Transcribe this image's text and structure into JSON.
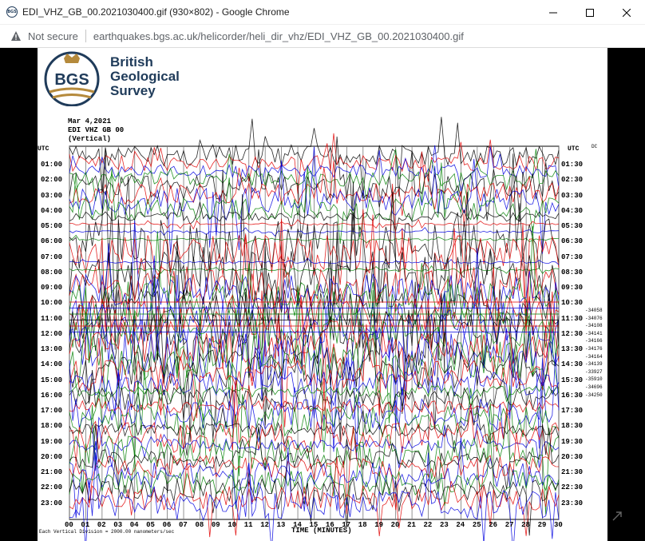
{
  "window": {
    "title": "EDI_VHZ_GB_00.2021030400.gif (930×802) - Google Chrome",
    "favicon_text": "BGS"
  },
  "address": {
    "security": "Not secure",
    "url": "earthquakes.bgs.ac.uk/helicorder/heli_dir_vhz/EDI_VHZ_GB_00.2021030400.gif"
  },
  "logo": {
    "badge": "BGS",
    "line1": "British",
    "line2": "Geological",
    "line3": "Survey",
    "colors": {
      "navy": "#1f3b5a",
      "gold": "#b58a3c"
    }
  },
  "heli": {
    "date": "Mar 4,2021",
    "station": "EDI VHZ GB 00",
    "component": "(Vertical)",
    "utc_left": "UTC",
    "utc_right": "UTC",
    "dc": "DC",
    "left_labels": [
      "01:00",
      "02:00",
      "03:00",
      "04:00",
      "05:00",
      "06:00",
      "07:00",
      "08:00",
      "09:00",
      "10:00",
      "11:00",
      "12:00",
      "13:00",
      "14:00",
      "15:00",
      "16:00",
      "17:00",
      "18:00",
      "19:00",
      "20:00",
      "21:00",
      "22:00",
      "23:00"
    ],
    "right_labels": [
      "01:30",
      "02:30",
      "03:30",
      "04:30",
      "05:30",
      "06:30",
      "07:30",
      "08:30",
      "09:30",
      "10:30",
      "11:30",
      "12:30",
      "13:30",
      "14:30",
      "15:30",
      "16:30",
      "17:30",
      "18:30",
      "19:30",
      "20:30",
      "21:30",
      "22:30",
      "23:30"
    ],
    "counts": [
      "-34058",
      "-34076",
      "-34108",
      "-34141",
      "-34166",
      "-34176",
      "-34164",
      "-34139",
      "-33927",
      "-35910",
      "-34696",
      "-34250"
    ],
    "x_labels": [
      "00",
      "01",
      "02",
      "03",
      "04",
      "05",
      "06",
      "07",
      "08",
      "09",
      "10",
      "11",
      "12",
      "13",
      "14",
      "15",
      "16",
      "17",
      "18",
      "19",
      "20",
      "21",
      "22",
      "23",
      "24",
      "25",
      "26",
      "27",
      "28",
      "29",
      "30"
    ],
    "x_title": "TIME (MINUTES)",
    "division_note": "Each Vertical Division = 2000.00 nanometers/sec",
    "trace_colors": [
      "#000000",
      "#e00000",
      "#0000e0",
      "#008000"
    ]
  }
}
